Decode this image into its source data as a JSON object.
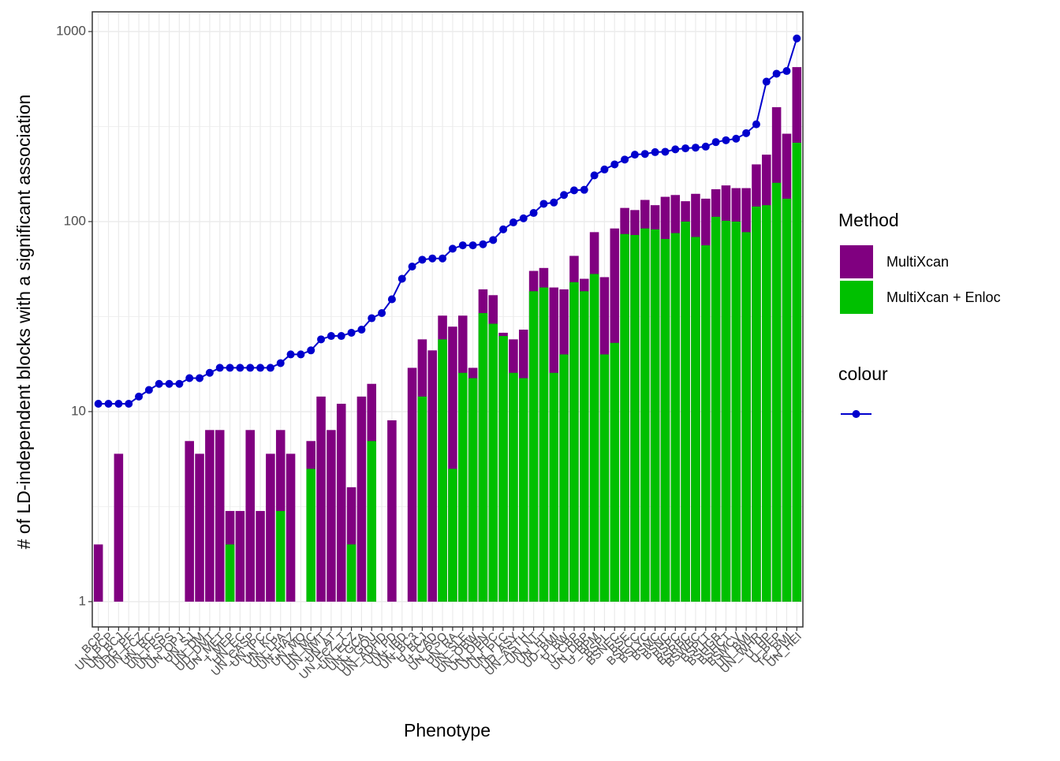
{
  "chart_data": {
    "type": "bar",
    "xlabel": "Phenotype",
    "ylabel": "# of LD-independent blocks with a significant association",
    "log_y": true,
    "grid": true,
    "ylim": [
      0.736,
      1270
    ],
    "yticks": [
      1,
      10,
      100,
      1000
    ],
    "categories": [
      "BCP",
      "UN_BCP",
      "UN_BCJ",
      "UDG_PF",
      "UN_FCZ",
      "UN_RC",
      "UN_FPS",
      "UN_SPS",
      "UN_OPJ",
      "UN_SJ",
      "UN_DM",
      "UD_DMT",
      "UN_MET",
      "I_MEP",
      "UN_EC",
      "UN_CASP",
      "UN_IPC",
      "UN_KC",
      "UN_LPA",
      "UN_HAZ",
      "UN_MO",
      "UN_MC",
      "UN_NMT",
      "UN_AT",
      "UN_FCZ_T",
      "UN_ECZ",
      "UN_GCA",
      "UN_GOU",
      "UN_ADHD",
      "UN_PD",
      "UN_IBD",
      "UN_BC3",
      "U_BCJ",
      "U_CAD",
      "UN_PSO",
      "UN_RA",
      "UN_SLE",
      "UN_OBW",
      "UN_OBN",
      "UN_FPC",
      "UN_PLC",
      "UD_ASY",
      "UN_ASTH",
      "UN_NT",
      "UN_HT",
      "UD_BMI",
      "U_BW",
      "U_CBP",
      "UN_DBP",
      "U_BPM",
      "BSPL",
      "BSNEC",
      "BSE",
      "BSECC",
      "BSLYC",
      "BSMC",
      "BSNC",
      "BSPC",
      "BSRBC",
      "BSWBC",
      "BSPLT",
      "BSHGB",
      "BSHCT",
      "BSMCV",
      "UN_BMI",
      "UN_WHR",
      "U_HP",
      "U_BFP",
      "TC_BMI",
      "UN_HEI"
    ],
    "series": [
      {
        "name": "MultiXcan",
        "color": "#800080",
        "values": [
          2,
          null,
          6,
          null,
          null,
          null,
          null,
          null,
          null,
          7,
          6,
          8,
          8,
          3,
          3,
          8,
          3,
          6,
          8,
          6,
          null,
          7,
          12,
          8,
          11,
          4,
          12,
          14,
          null,
          9,
          null,
          17,
          24,
          21,
          32,
          28,
          32,
          17,
          44,
          41,
          26,
          24,
          27,
          55,
          57,
          45,
          44,
          66,
          50,
          88,
          51,
          92,
          118,
          115,
          130,
          122,
          135,
          138,
          128,
          140,
          132,
          148,
          155,
          150,
          150,
          200,
          225,
          400,
          290,
          650
        ]
      },
      {
        "name": "MultiXcan + Enloc",
        "color": "#00c000",
        "values": [
          null,
          null,
          null,
          null,
          null,
          null,
          null,
          null,
          null,
          null,
          null,
          null,
          null,
          2,
          null,
          null,
          null,
          null,
          3,
          null,
          null,
          5,
          null,
          null,
          null,
          2,
          null,
          7,
          null,
          null,
          null,
          null,
          12,
          null,
          24,
          5,
          16,
          15,
          33,
          29,
          25,
          16,
          15,
          43,
          45,
          16,
          20,
          48,
          43,
          53,
          20,
          23,
          86,
          85,
          92,
          91,
          81,
          87,
          100,
          83,
          75,
          106,
          101,
          100,
          88,
          120,
          122,
          160,
          132,
          260
        ]
      }
    ],
    "line": {
      "color": "#0000cd",
      "values": [
        11,
        11,
        11,
        11,
        12,
        13,
        14,
        14,
        14,
        15,
        15,
        16,
        17,
        17,
        17,
        17,
        17,
        17,
        18,
        20,
        20,
        21,
        24,
        25,
        25,
        26,
        27,
        31,
        33,
        39,
        50,
        58,
        63,
        64,
        64,
        72,
        75,
        75,
        76,
        80,
        91,
        99,
        104,
        111,
        124,
        126,
        138,
        146,
        147,
        175,
        188,
        200,
        212,
        225,
        227,
        232,
        233,
        240,
        243,
        245,
        248,
        262,
        268,
        273,
        292,
        325,
        545,
        600,
        620,
        920
      ]
    },
    "legend": {
      "method_title": "Method",
      "colour_title": "colour"
    }
  }
}
